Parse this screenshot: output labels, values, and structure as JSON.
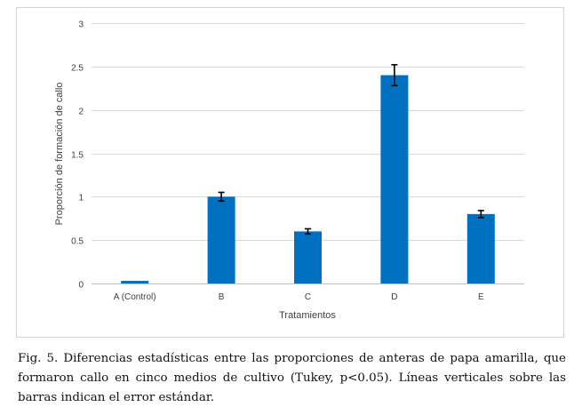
{
  "chart_data": {
    "type": "bar",
    "categories": [
      "A (Control)",
      "B",
      "C",
      "D",
      "E"
    ],
    "values": [
      0.03,
      1.0,
      0.6,
      2.4,
      0.8
    ],
    "error": [
      0.0,
      0.05,
      0.03,
      0.12,
      0.04
    ],
    "xlabel": "Tratamientos",
    "ylabel": "Proporción de formación de callo",
    "ylim": [
      0,
      3
    ],
    "yticks": [
      0,
      0.5,
      1,
      1.5,
      2,
      2.5,
      3
    ],
    "ytick_labels": [
      "0",
      "0.5",
      "1",
      "1.5",
      "2",
      "2.5",
      "3"
    ],
    "grid": true,
    "bar_color": "#0070c0"
  },
  "caption": "Fig. 5. Diferencias estadísticas entre las proporciones de anteras de papa amarilla, que formaron callo en cinco medios de cultivo (Tukey, p<0.05). Líneas verticales sobre las barras indican el error estándar."
}
